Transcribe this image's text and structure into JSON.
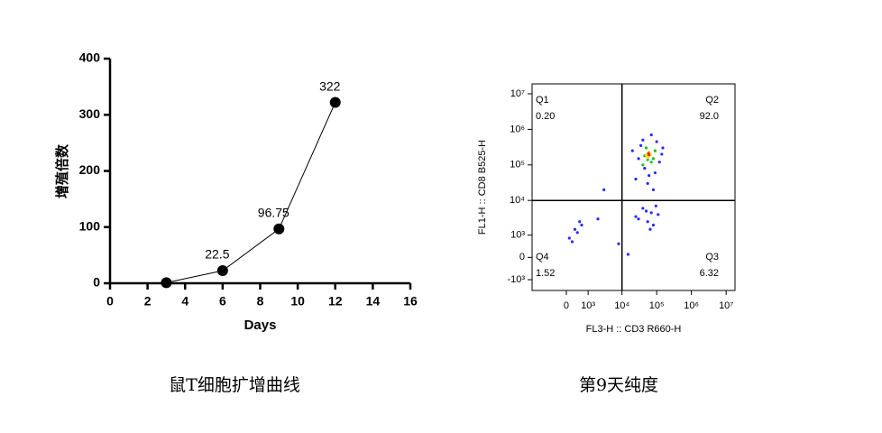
{
  "charts": [
    {
      "type": "line",
      "caption": "鼠T细胞扩增曲线",
      "xlabel": "Days",
      "ylabel": "增殖倍数",
      "x": [
        3,
        6,
        9,
        12
      ],
      "values": [
        1,
        22.5,
        96.75,
        322
      ],
      "value_labels": [
        null,
        "22.5",
        "96.75",
        "322"
      ],
      "color": "#000000",
      "xlim": [
        0,
        16
      ],
      "xticks": [
        0,
        2,
        4,
        6,
        8,
        10,
        12,
        14,
        16
      ],
      "ylim": [
        0,
        400
      ],
      "yticks": [
        0,
        100,
        200,
        300,
        400
      ]
    },
    {
      "type": "scatter",
      "caption": "第9天纯度",
      "xlabel": "FL3-H :: CD3 R660-H",
      "ylabel": "FL1-H :: CD8 B525-H",
      "xscale": "biexponential",
      "yscale": "biexponential",
      "xlim": [
        -2400,
        18000000
      ],
      "ylim": [
        -2100,
        19000000
      ],
      "xticks": [
        0,
        {
          "value": 1000,
          "label": "10³"
        },
        {
          "value": 10000,
          "label": "10⁴"
        },
        {
          "value": 100000,
          "label": "10⁵"
        },
        {
          "value": 1000000,
          "label": "10⁶"
        },
        {
          "value": 10000000,
          "label": "10⁷"
        }
      ],
      "yticks": [
        {
          "value": -1000,
          "label": "-10³"
        },
        0,
        {
          "value": 1000,
          "label": "10³"
        },
        {
          "value": 10000,
          "label": "10⁴"
        },
        {
          "value": 100000,
          "label": "10⁵"
        },
        {
          "value": 1000000,
          "label": "10⁶"
        },
        {
          "value": 10000000,
          "label": "10⁷"
        }
      ],
      "gate": [
        10000,
        10000
      ],
      "quadrants": {
        "names": [
          "Q1",
          "Q2",
          "Q3",
          "Q4"
        ],
        "values": [
          0.2,
          92,
          6.32,
          1.52
        ],
        "value_labels": [
          "0.20",
          "92.0",
          "6.32",
          "1.52"
        ]
      },
      "series": [
        {
          "color": "#2a2aff",
          "x": [
            25000,
            40000,
            90000,
            150000,
            30000,
            70000,
            120000,
            55000,
            20000,
            100000,
            45000,
            80000,
            35000,
            140000,
            60000,
            30000,
            50000,
            80000,
            110000,
            40000,
            65000,
            25000,
            95000,
            55000,
            70000,
            100,
            300,
            500,
            200,
            600,
            400,
            3000,
            8000,
            15000,
            2000
          ],
          "values": [
            40000,
            500000,
            60000,
            300000,
            150000,
            700000,
            120000,
            30000,
            250000,
            450000,
            80000,
            20000,
            350000,
            200000,
            50000,
            3000,
            5000,
            2000,
            4000,
            6000,
            1500,
            3500,
            7000,
            2500,
            4500,
            800,
            1500,
            2500,
            600,
            2000,
            1200,
            20000,
            500,
            100,
            3000
          ]
        },
        {
          "color": "#20c020",
          "x": [
            40000,
            60000,
            80000,
            50000,
            70000,
            45000,
            90000,
            55000
          ],
          "values": [
            100000,
            200000,
            150000,
            300000,
            120000,
            180000,
            250000,
            140000
          ]
        },
        {
          "color": "#f0e000",
          "x": [
            55000,
            65000,
            60000,
            50000
          ],
          "values": [
            160000,
            200000,
            230000,
            190000
          ]
        },
        {
          "color": "#ff2000",
          "x": [
            60000,
            58000
          ],
          "values": [
            190000,
            210000
          ]
        }
      ]
    }
  ]
}
